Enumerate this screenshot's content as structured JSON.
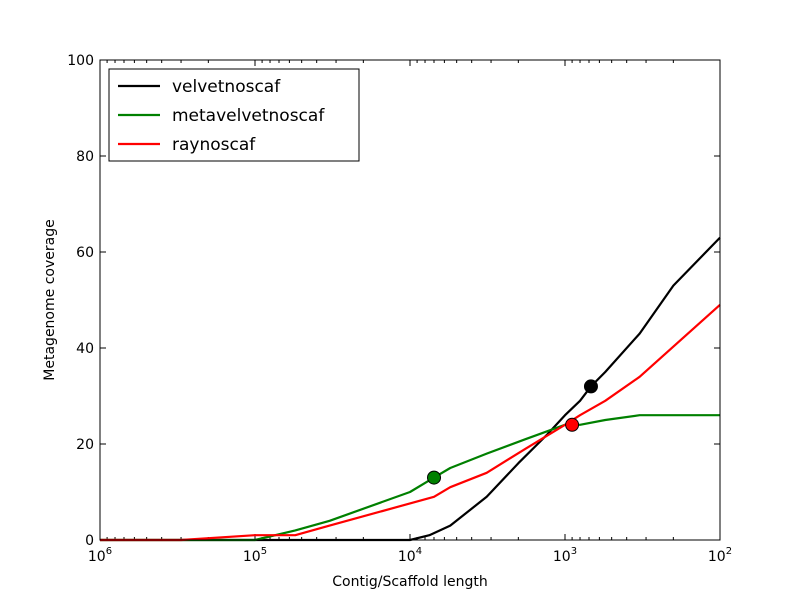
{
  "chart_data": {
    "type": "line",
    "xlabel": "Contig/Scaffold length",
    "ylabel": "Metagenome coverage",
    "x_scale": "log",
    "x_reversed": true,
    "xlim": [
      1000000,
      100
    ],
    "ylim": [
      0,
      100
    ],
    "x_ticks": [
      {
        "value": 1000000,
        "base": "10",
        "exp": "6"
      },
      {
        "value": 100000,
        "base": "10",
        "exp": "5"
      },
      {
        "value": 10000,
        "base": "10",
        "exp": "4"
      },
      {
        "value": 1000,
        "base": "10",
        "exp": "3"
      },
      {
        "value": 100,
        "base": "10",
        "exp": "2"
      }
    ],
    "y_ticks": [
      0,
      20,
      40,
      60,
      80,
      100
    ],
    "legend_position": "top-left",
    "series": [
      {
        "name": "velvetnoscaf",
        "color": "#000000",
        "points": [
          [
            1000000,
            0
          ],
          [
            10000,
            0
          ],
          [
            7500,
            1
          ],
          [
            5500,
            3
          ],
          [
            3200,
            9
          ],
          [
            2000,
            16
          ],
          [
            1300,
            22
          ],
          [
            1000,
            26
          ],
          [
            800,
            29
          ],
          [
            680,
            32
          ],
          [
            550,
            35
          ],
          [
            330,
            43
          ],
          [
            200,
            53
          ],
          [
            100,
            63
          ]
        ],
        "marker": [
          680,
          32
        ]
      },
      {
        "name": "metavelvetnoscaf",
        "color": "#008000",
        "points": [
          [
            1000000,
            0
          ],
          [
            130000,
            0
          ],
          [
            100000,
            0
          ],
          [
            55000,
            2
          ],
          [
            33000,
            4
          ],
          [
            10000,
            10
          ],
          [
            7000,
            13
          ],
          [
            5500,
            15
          ],
          [
            3200,
            18
          ],
          [
            1800,
            21
          ],
          [
            1000,
            24
          ],
          [
            800,
            24
          ],
          [
            550,
            25
          ],
          [
            330,
            26
          ],
          [
            100,
            26
          ]
        ],
        "marker": [
          7000,
          13
        ]
      },
      {
        "name": "raynoscaf",
        "color": "#ff0000",
        "points": [
          [
            1000000,
            0
          ],
          [
            300000,
            0
          ],
          [
            100000,
            1
          ],
          [
            55000,
            1
          ],
          [
            33000,
            3
          ],
          [
            7000,
            9
          ],
          [
            5500,
            11
          ],
          [
            3200,
            14
          ],
          [
            1800,
            19
          ],
          [
            1000,
            24
          ],
          [
            800,
            26
          ],
          [
            550,
            29
          ],
          [
            330,
            34
          ],
          [
            100,
            49
          ]
        ],
        "marker": [
          900,
          24
        ]
      }
    ]
  }
}
